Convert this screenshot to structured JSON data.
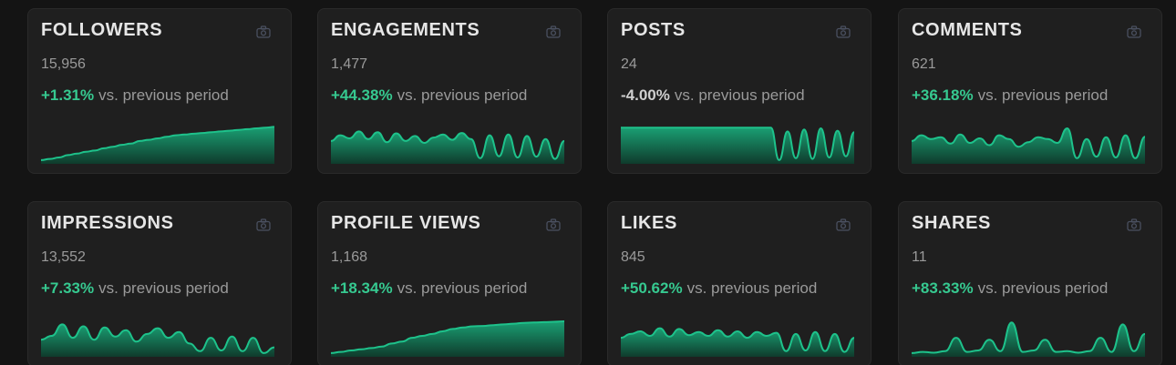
{
  "colors": {
    "positive": "#36c990",
    "line": "#1ec28b",
    "fill_top": "#1a9f73",
    "fill_bottom": "#0f3b2c"
  },
  "icon": "camera-icon",
  "cards": [
    {
      "title": "FOLLOWERS",
      "value": "15,956",
      "change": "+1.31%",
      "suffix": "vs. previous period",
      "trend": "positive"
    },
    {
      "title": "ENGAGEMENTS",
      "value": "1,477",
      "change": "+44.38%",
      "suffix": "vs. previous period",
      "trend": "positive"
    },
    {
      "title": "POSTS",
      "value": "24",
      "change": "-4.00%",
      "suffix": "vs. previous period",
      "trend": "negative"
    },
    {
      "title": "COMMENTS",
      "value": "621",
      "change": "+36.18%",
      "suffix": "vs. previous period",
      "trend": "positive"
    },
    {
      "title": "IMPRESSIONS",
      "value": "13,552",
      "change": "+7.33%",
      "suffix": "vs. previous period",
      "trend": "positive"
    },
    {
      "title": "PROFILE VIEWS",
      "value": "1,168",
      "change": "+18.34%",
      "suffix": "vs. previous period",
      "trend": "positive"
    },
    {
      "title": "LIKES",
      "value": "845",
      "change": "+50.62%",
      "suffix": "vs. previous period",
      "trend": "positive"
    },
    {
      "title": "SHARES",
      "value": "11",
      "change": "+83.33%",
      "suffix": "vs. previous period",
      "trend": "positive"
    }
  ],
  "chart_data": [
    {
      "type": "area",
      "series": [
        {
          "values": [
            5,
            8,
            12,
            18,
            22,
            27,
            30,
            36,
            40,
            45,
            48,
            55,
            58,
            62,
            66,
            70,
            72,
            74,
            76,
            78,
            80,
            82,
            84,
            86,
            88,
            90,
            92
          ]
        }
      ]
    },
    {
      "type": "area",
      "series": [
        {
          "values": [
            55,
            70,
            62,
            80,
            60,
            78,
            52,
            75,
            55,
            68,
            50,
            64,
            72,
            58,
            76,
            60,
            10,
            70,
            15,
            72,
            12,
            68,
            14,
            60,
            8,
            55
          ]
        }
      ]
    },
    {
      "type": "area",
      "series": [
        {
          "values": [
            90,
            90,
            90,
            90,
            90,
            90,
            90,
            90,
            90,
            90,
            90,
            90,
            90,
            90,
            90,
            90,
            90,
            90,
            90,
            5,
            80,
            10,
            85,
            8,
            88,
            12,
            82,
            15,
            78
          ]
        }
      ]
    },
    {
      "type": "area",
      "series": [
        {
          "values": [
            55,
            70,
            60,
            65,
            48,
            72,
            50,
            62,
            44,
            70,
            60,
            40,
            52,
            65,
            60,
            50,
            88,
            10,
            60,
            14,
            65,
            12,
            70,
            10,
            66
          ]
        }
      ]
    },
    {
      "type": "area",
      "series": [
        {
          "values": [
            40,
            50,
            80,
            45,
            75,
            40,
            72,
            48,
            65,
            35,
            55,
            70,
            45,
            60,
            30,
            10,
            45,
            12,
            48,
            10,
            45,
            5,
            20
          ]
        }
      ]
    },
    {
      "type": "area",
      "series": [
        {
          "values": [
            5,
            8,
            12,
            15,
            18,
            22,
            30,
            35,
            45,
            50,
            55,
            62,
            68,
            72,
            75,
            76,
            78,
            80,
            82,
            84,
            85,
            86,
            87,
            88
          ]
        }
      ]
    },
    {
      "type": "area",
      "series": [
        {
          "values": [
            45,
            55,
            62,
            50,
            70,
            48,
            68,
            52,
            60,
            50,
            65,
            48,
            62,
            45,
            60,
            50,
            58,
            10,
            55,
            12,
            60,
            10,
            55,
            8,
            45
          ]
        }
      ]
    },
    {
      "type": "area",
      "series": [
        {
          "values": [
            5,
            8,
            6,
            10,
            45,
            8,
            12,
            40,
            10,
            85,
            8,
            12,
            40,
            8,
            10,
            6,
            10,
            45,
            8,
            80,
            10,
            55
          ]
        }
      ]
    }
  ]
}
